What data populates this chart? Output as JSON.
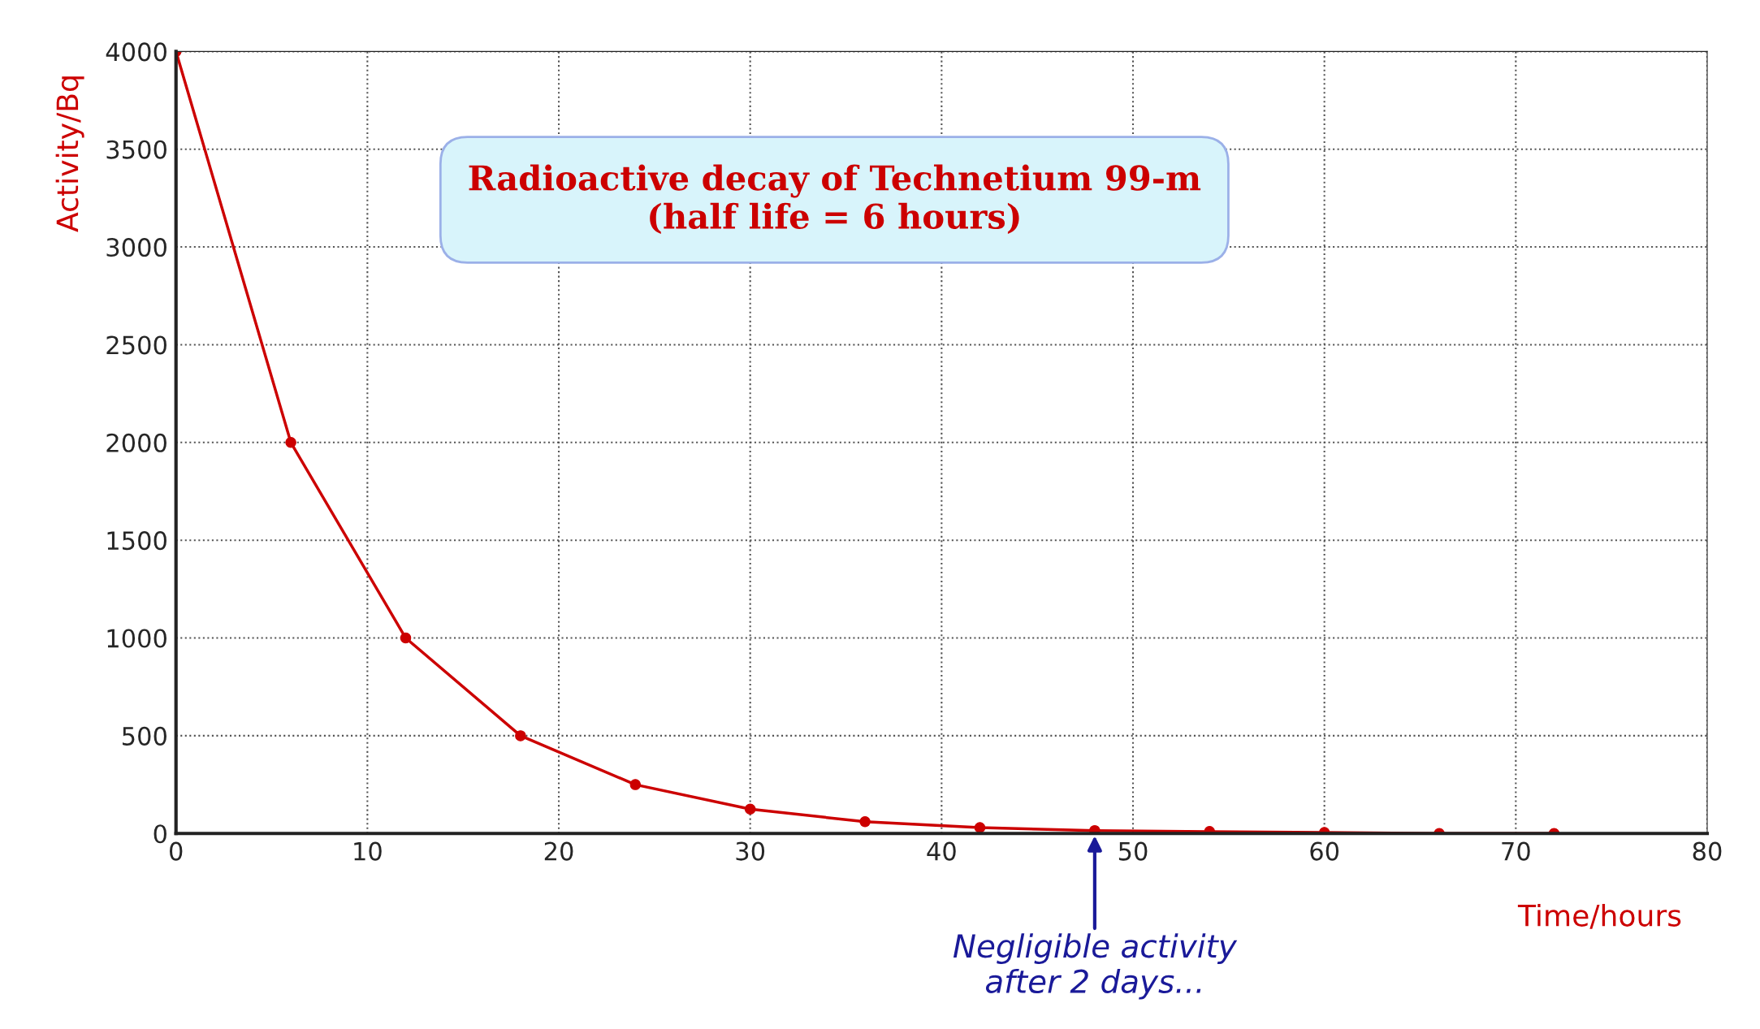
{
  "chart_data": {
    "type": "line",
    "title": "Radioactive decay of Technetium 99-m\n(half life = 6 hours)",
    "xlabel": "Time/hours",
    "ylabel": "Activity/Bq",
    "x": [
      0,
      6,
      12,
      18,
      24,
      30,
      36,
      42,
      48,
      54,
      60,
      66,
      72
    ],
    "series": [
      {
        "color": "#cc0000",
        "values": [
          4000,
          2000,
          1000,
          500,
          250,
          125,
          60,
          30,
          15,
          10,
          5,
          0,
          0
        ]
      }
    ],
    "xlim": [
      0,
      80
    ],
    "xticks": [
      0,
      10,
      20,
      30,
      40,
      50,
      60,
      70,
      80
    ],
    "ylim": [
      0,
      4000
    ],
    "yticks": [
      0,
      500,
      1000,
      1500,
      2000,
      2500,
      3000,
      3500,
      4000
    ],
    "grid": true,
    "marker": "circle",
    "line_style": "solid",
    "annotations": [
      {
        "text": "Negligible activity\nafter 2 days...",
        "x": 48,
        "y": 0
      }
    ]
  }
}
